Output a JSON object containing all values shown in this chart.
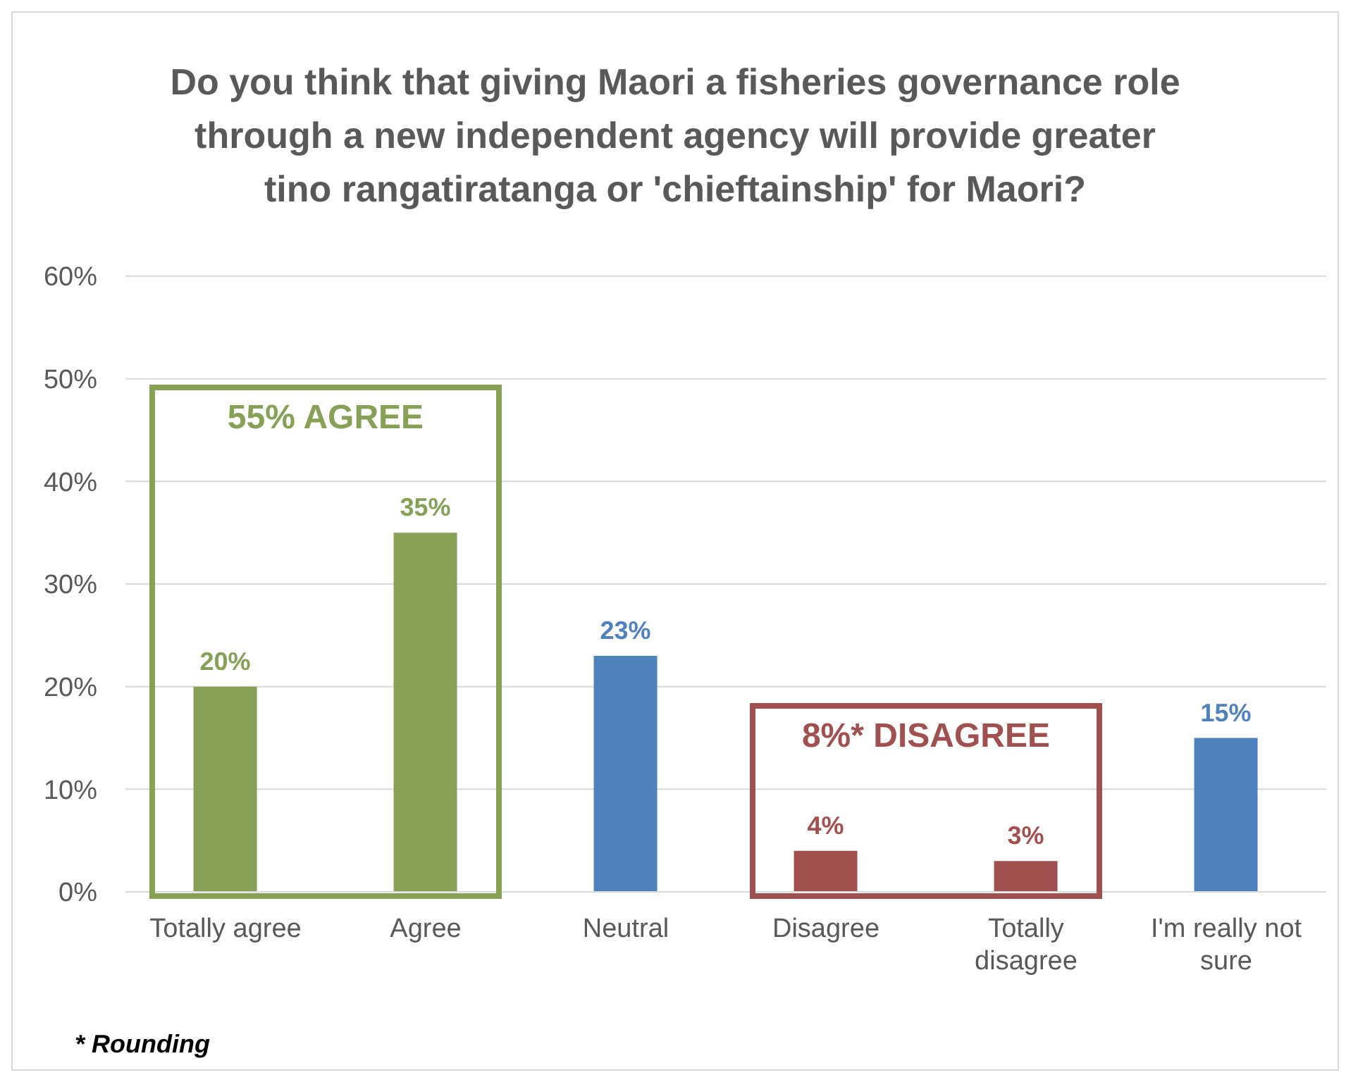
{
  "chart_data": {
    "type": "bar",
    "title": "Do you think that giving Maori a fisheries governance role through a new independent agency will provide greater tino rangatiratanga or 'chieftainship' for Maori?",
    "categories": [
      "Totally agree",
      "Agree",
      "Neutral",
      "Disagree",
      "Totally disagree",
      "I'm really not sure"
    ],
    "values": [
      20,
      35,
      23,
      4,
      3,
      15
    ],
    "colors": [
      "#86a055",
      "#86a055",
      "#4f81bd",
      "#a0504f",
      "#a0504f",
      "#4f81bd"
    ],
    "ylim": [
      0,
      60
    ],
    "yticks": [
      {
        "value": 0,
        "label": "0%"
      },
      {
        "value": 10,
        "label": "10%"
      },
      {
        "value": 20,
        "label": "20%"
      },
      {
        "value": 30,
        "label": "30%"
      },
      {
        "value": 40,
        "label": "40%"
      },
      {
        "value": 50,
        "label": "50%"
      },
      {
        "value": 60,
        "label": "60%"
      }
    ],
    "grid": "y",
    "value_labels": [
      "20%",
      "35%",
      "23%",
      "4%",
      "3%",
      "15%"
    ],
    "annotations": [
      "55% AGREE",
      "8%* DISAGREE",
      "* Rounding"
    ]
  }
}
